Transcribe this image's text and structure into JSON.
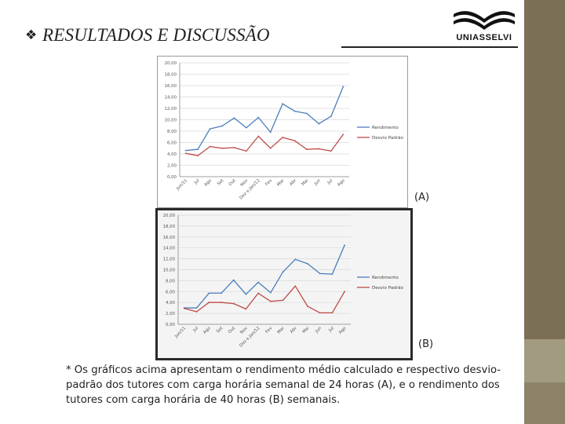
{
  "slide": {
    "bullet_symbol": "❖",
    "title": "RESULTADOS E DISCUSSÃO",
    "logo_text": "UNIASSELVI",
    "label_a": "(A)",
    "label_b": "(B)",
    "footnote": "* Os gráficos acima apresentam o rendimento médio calculado e respectivo desvio-padrão dos tutores com carga horária semanal de 24 horas (A), e o rendimento dos tutores com carga horária de 40 horas (B) semanais."
  },
  "colors": {
    "rendimento": "#4a7ebb",
    "desvio": "#be4b48",
    "sidebar": "#7b6f55"
  },
  "chart_data": [
    {
      "type": "line",
      "id": "A",
      "categories": [
        "Jun/11",
        "Jul",
        "Ago",
        "Set",
        "Out",
        "Nov",
        "Dez e Jan/12",
        "Fev",
        "Mar",
        "Abr",
        "Mai",
        "Jun",
        "Jul",
        "Ago"
      ],
      "y_ticks": [
        "0,00",
        "2,00",
        "4,00",
        "6,00",
        "8,00",
        "10,00",
        "12,00",
        "14,00",
        "16,00",
        "18,00",
        "20,00"
      ],
      "ylim": [
        0,
        20
      ],
      "series": [
        {
          "name": "Rendimento",
          "values": [
            4.6,
            4.8,
            8.4,
            8.9,
            10.3,
            8.6,
            10.4,
            7.8,
            12.8,
            11.5,
            11.1,
            9.3,
            10.6,
            15.8
          ]
        },
        {
          "name": "Desvio Padrão",
          "values": [
            4.1,
            3.7,
            5.3,
            5.0,
            5.1,
            4.5,
            7.1,
            5.0,
            6.9,
            6.3,
            4.8,
            4.9,
            4.5,
            7.4
          ]
        }
      ],
      "legend": "right"
    },
    {
      "type": "line",
      "id": "B",
      "categories": [
        "Jun/11",
        "Jul",
        "Ago",
        "Set",
        "Out",
        "Nov",
        "Dez e Jan/12",
        "Fev",
        "Mar",
        "Abr",
        "Mai",
        "Jun",
        "Jul",
        "Ago"
      ],
      "y_ticks": [
        "0,00",
        "2,00",
        "4,00",
        "6,00",
        "8,00",
        "10,00",
        "12,00",
        "14,00",
        "16,00",
        "18,00",
        "20,00"
      ],
      "ylim": [
        0,
        20
      ],
      "series": [
        {
          "name": "Rendimento",
          "values": [
            3.0,
            3.0,
            5.7,
            5.7,
            8.1,
            5.5,
            7.7,
            5.8,
            9.6,
            11.9,
            11.1,
            9.3,
            9.2,
            14.5
          ]
        },
        {
          "name": "Desvio Padrão",
          "values": [
            2.9,
            2.3,
            4.0,
            4.0,
            3.8,
            2.8,
            5.7,
            4.2,
            4.4,
            7.0,
            3.3,
            2.1,
            2.1,
            6.0
          ]
        }
      ],
      "legend": "right"
    }
  ]
}
